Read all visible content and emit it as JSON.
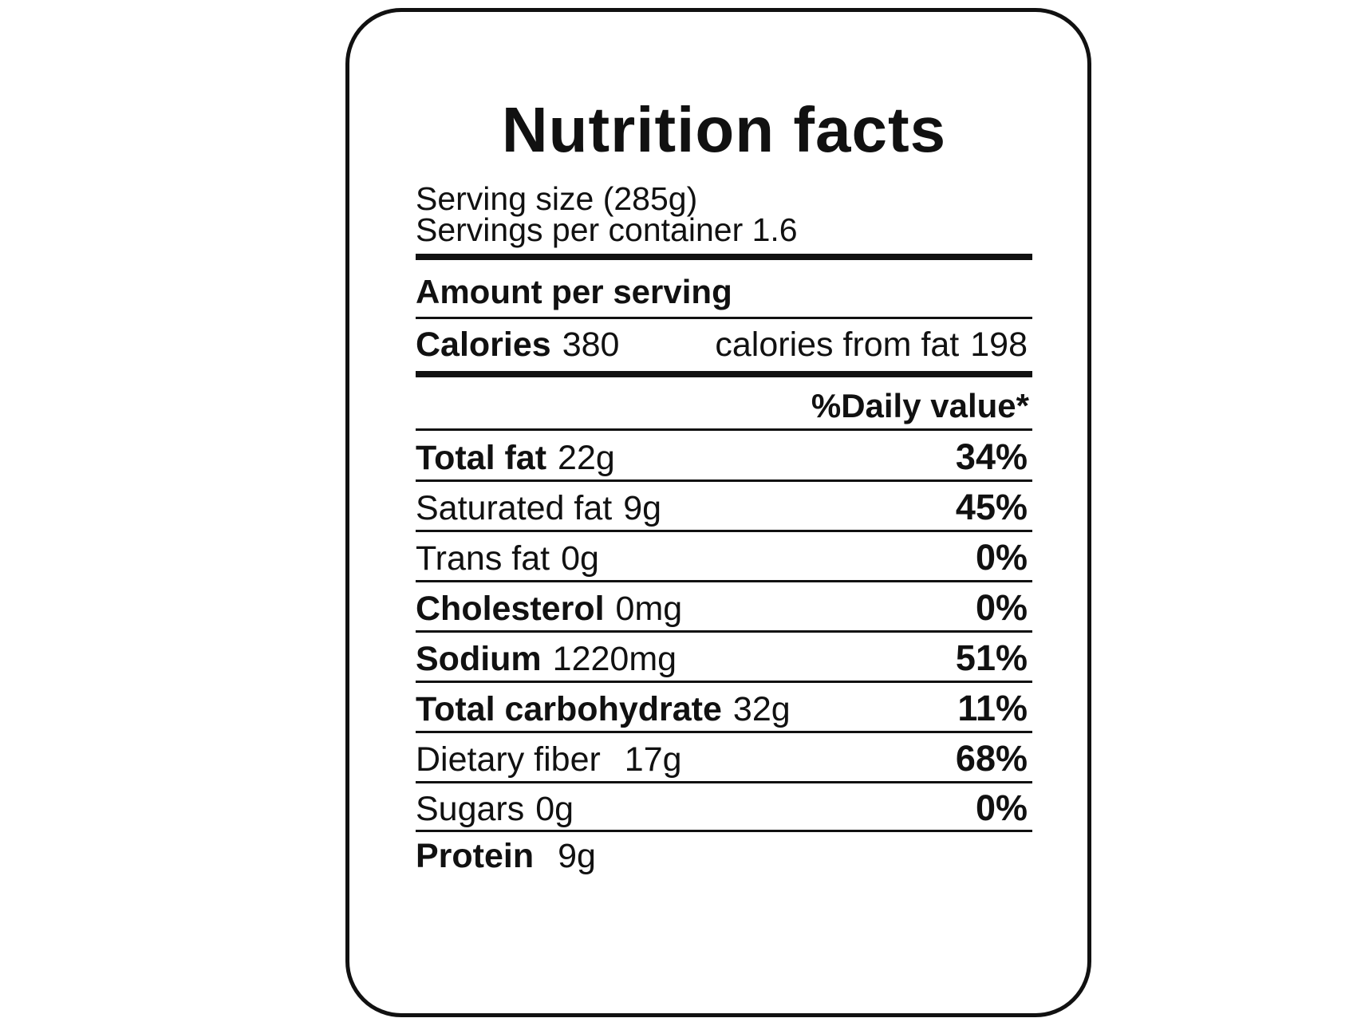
{
  "title": "Nutrition facts",
  "serving_size": "Serving size (285g)",
  "servings_per_container": "Servings per container 1.6",
  "amount_per_serving": "Amount per serving",
  "calories": {
    "label": "Calories",
    "value": "380",
    "from_fat_label": "calories from fat",
    "from_fat_value": "198"
  },
  "daily_value_header": "%Daily value*",
  "nutrients": [
    {
      "label": "Total fat",
      "amount": "22g",
      "dv": "34%"
    },
    {
      "label": "Saturated fat",
      "amount": "9g",
      "dv": "45%"
    },
    {
      "label": "Trans fat",
      "amount": "0g",
      "dv": "0%"
    },
    {
      "label": "Cholesterol",
      "amount": "0mg",
      "dv": "0%"
    },
    {
      "label": "Sodium",
      "amount": "1220mg",
      "dv": "51%"
    },
    {
      "label": "Total carbohydrate",
      "amount": "32g",
      "dv": "11%"
    },
    {
      "label": "Dietary fiber",
      "amount": "17g",
      "dv": "68%"
    },
    {
      "label": "Sugars",
      "amount": "0g",
      "dv": "0%"
    },
    {
      "label": "Protein",
      "amount": "9g"
    }
  ]
}
